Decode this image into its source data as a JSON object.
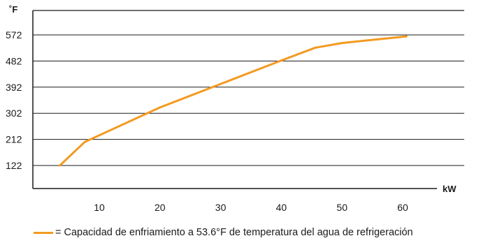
{
  "chart_data": {
    "type": "line",
    "y_unit_label": "˚F",
    "x_unit_label": "kW",
    "x_ticks": [
      10,
      20,
      30,
      40,
      50,
      60
    ],
    "y_ticks": [
      122,
      212,
      302,
      392,
      482,
      572
    ],
    "xlim": [
      0,
      70
    ],
    "ylim": [
      40,
      660
    ],
    "grid": "horizontal",
    "series": [
      {
        "name": "Capacidad de enfriamiento a 53.6°F de temperatura del agua de refrigeración",
        "color": "#f39a21",
        "points": [
          {
            "x": 3.5,
            "y": 122
          },
          {
            "x": 7.6,
            "y": 203
          },
          {
            "x": 20,
            "y": 322
          },
          {
            "x": 40,
            "y": 484
          },
          {
            "x": 45.6,
            "y": 528
          },
          {
            "x": 50,
            "y": 544
          },
          {
            "x": 60.6,
            "y": 567
          }
        ]
      }
    ]
  },
  "legend": {
    "prefix": "=",
    "text": "Capacidad de enfriamiento a 53.6°F de temperatura del agua de refrigeración"
  }
}
